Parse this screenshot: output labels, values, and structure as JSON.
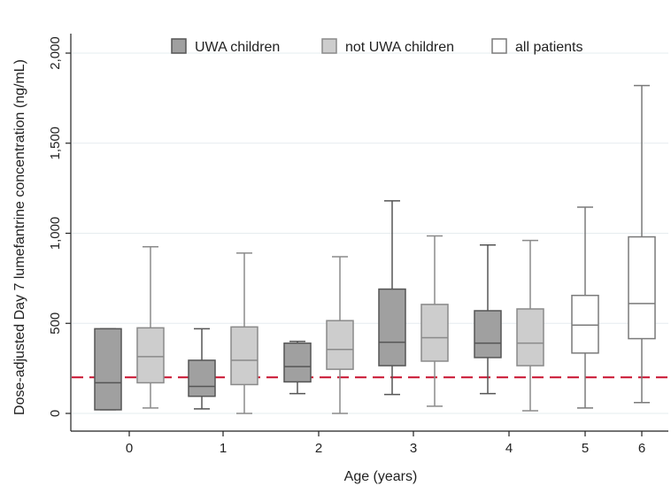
{
  "chart_data": {
    "type": "boxplot",
    "xlabel": "Age (years)",
    "ylabel": "Dose-adjusted Day 7 lumefantrine concentration (ng/mL)",
    "ylim": [
      -100,
      2050
    ],
    "y_ticks": [
      0,
      500,
      1000,
      1500,
      2000
    ],
    "y_tick_labels": [
      "0",
      "500",
      "1,000",
      "1,500",
      "2,000"
    ],
    "categories": [
      "0",
      "1",
      "2",
      "3",
      "4",
      "5",
      "6"
    ],
    "grid": true,
    "legend_position": "top",
    "reference_line": {
      "y": 200,
      "color": "#c8102e",
      "style": "dashed"
    },
    "series": [
      {
        "name": "UWA children",
        "color": "#a0a0a0",
        "boxes": [
          {
            "category": "0",
            "min": 20,
            "q1": 20,
            "median": 170,
            "q3": 470,
            "max": 470
          },
          {
            "category": "1",
            "min": 25,
            "q1": 95,
            "median": 150,
            "q3": 295,
            "max": 470
          },
          {
            "category": "2",
            "min": 110,
            "q1": 175,
            "median": 260,
            "q3": 390,
            "max": 400
          },
          {
            "category": "3",
            "min": 105,
            "q1": 265,
            "median": 395,
            "q3": 690,
            "max": 1180
          },
          {
            "category": "4",
            "min": 110,
            "q1": 310,
            "median": 390,
            "q3": 570,
            "max": 935
          }
        ]
      },
      {
        "name": "not UWA children",
        "color": "#cdcdcd",
        "boxes": [
          {
            "category": "0",
            "min": 30,
            "q1": 170,
            "median": 315,
            "q3": 475,
            "max": 925
          },
          {
            "category": "1",
            "min": 0,
            "q1": 160,
            "median": 295,
            "q3": 480,
            "max": 890
          },
          {
            "category": "2",
            "min": 0,
            "q1": 245,
            "median": 355,
            "q3": 515,
            "max": 870
          },
          {
            "category": "3",
            "min": 40,
            "q1": 290,
            "median": 420,
            "q3": 605,
            "max": 985
          },
          {
            "category": "4",
            "min": 15,
            "q1": 265,
            "median": 390,
            "q3": 580,
            "max": 960
          }
        ]
      },
      {
        "name": "all patients",
        "color": "#ffffff",
        "boxes": [
          {
            "category": "5",
            "min": 30,
            "q1": 335,
            "median": 490,
            "q3": 655,
            "max": 1145
          },
          {
            "category": "6",
            "min": 60,
            "q1": 415,
            "median": 610,
            "q3": 980,
            "max": 1820
          }
        ]
      }
    ]
  }
}
